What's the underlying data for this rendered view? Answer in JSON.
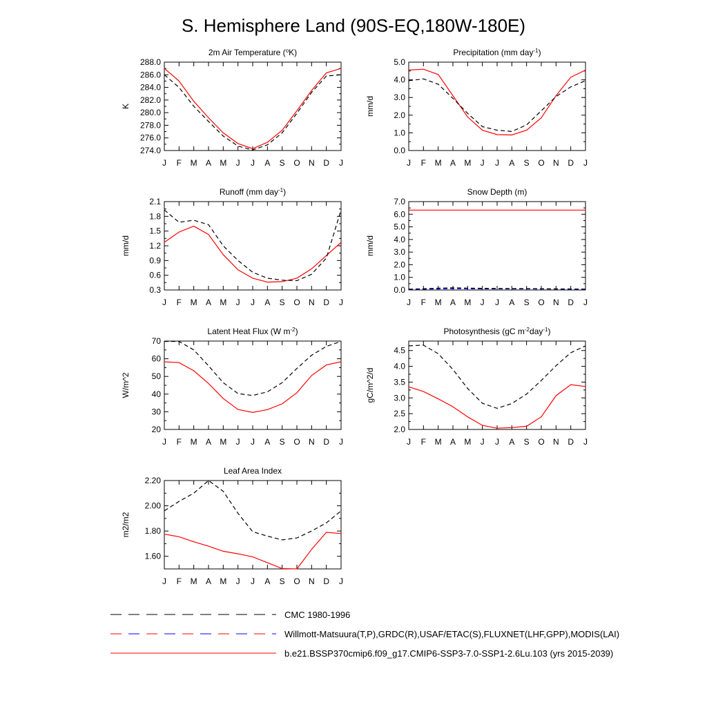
{
  "title": "S. Hemisphere Land (90S-EQ,180W-180E)",
  "months": [
    "J",
    "F",
    "M",
    "A",
    "M",
    "J",
    "J",
    "A",
    "S",
    "O",
    "N",
    "D",
    "J"
  ],
  "colors": {
    "model": "#ff0000",
    "obs": "#000000",
    "obs_alt": "#0000ff",
    "frame": "#000000"
  },
  "legend": [
    {
      "label": "CMC 1980-1996",
      "style": "dashed",
      "colors": [
        "#000000"
      ]
    },
    {
      "label": "Willmott-Matsuura(T,P),GRDC(R),USAF/ETAC(S),FLUXNET(LHF,GPP),MODIS(LAI)",
      "style": "dashed",
      "colors": [
        "#ff0000",
        "#0000ff"
      ]
    },
    {
      "label": "b.e21.BSSP370cmip6.f09_g17.CMIP6-SSP3-7.0-SSP1-2.6Lu.103 (yrs 2015-2039)",
      "style": "solid",
      "colors": [
        "#ff0000"
      ]
    }
  ],
  "chart_data": [
    {
      "type": "line",
      "title": "2m Air Temperature (",
      "title_sup": "o",
      "title_tail": "K)",
      "ylabel": "K",
      "ylim": [
        274,
        288
      ],
      "yticks": [
        274,
        276,
        278,
        280,
        282,
        284,
        286,
        288
      ],
      "ytick_labels": [
        "274.0",
        "276.0",
        "278.0",
        "280.0",
        "282.0",
        "284.0",
        "286.0",
        "288.0"
      ],
      "series": [
        {
          "name": "Model",
          "style": "solid",
          "color": "#ff0000",
          "values": [
            287.0,
            285.0,
            281.8,
            279.2,
            276.8,
            275.1,
            274.3,
            275.3,
            277.2,
            280.3,
            283.5,
            286.3,
            287.0
          ]
        },
        {
          "name": "Observed",
          "style": "dashed",
          "color": "#000000",
          "values": [
            286.0,
            284.0,
            281.0,
            278.6,
            276.3,
            274.7,
            274.1,
            274.9,
            276.8,
            279.9,
            283.2,
            285.8,
            286.0
          ]
        }
      ]
    },
    {
      "type": "line",
      "title": "Precipitation (mm day",
      "title_sup": "-1",
      "title_tail": ")",
      "ylabel": "mm/d",
      "ylim": [
        0,
        5
      ],
      "yticks": [
        0,
        1,
        2,
        3,
        4,
        5
      ],
      "ytick_labels": [
        "0.0",
        "1.0",
        "2.0",
        "3.0",
        "4.0",
        "5.0"
      ],
      "series": [
        {
          "name": "Model",
          "style": "solid",
          "color": "#ff0000",
          "values": [
            4.55,
            4.6,
            4.3,
            3.1,
            1.9,
            1.15,
            0.9,
            0.88,
            1.15,
            1.85,
            3.1,
            4.15,
            4.55
          ]
        },
        {
          "name": "Observed",
          "style": "dashed",
          "color": "#000000",
          "values": [
            3.95,
            4.05,
            3.75,
            2.95,
            2.1,
            1.35,
            1.15,
            1.08,
            1.45,
            2.25,
            3.05,
            3.6,
            3.95
          ]
        }
      ]
    },
    {
      "type": "line",
      "title": "Runoff (mm day",
      "title_sup": "-1",
      "title_tail": ")",
      "ylabel": "mm/d",
      "ylim": [
        0.3,
        2.1
      ],
      "yticks": [
        0.3,
        0.6,
        0.9,
        1.2,
        1.5,
        1.8,
        2.1
      ],
      "ytick_labels": [
        "0.3",
        "0.6",
        "0.9",
        "1.2",
        "1.5",
        "1.8",
        "2.1"
      ],
      "series": [
        {
          "name": "Model",
          "style": "solid",
          "color": "#ff0000",
          "values": [
            1.27,
            1.48,
            1.6,
            1.43,
            1.02,
            0.71,
            0.54,
            0.46,
            0.47,
            0.54,
            0.73,
            1.0,
            1.27
          ]
        },
        {
          "name": "Observed",
          "style": "dashed",
          "color": "#000000",
          "values": [
            1.93,
            1.68,
            1.72,
            1.63,
            1.2,
            0.9,
            0.66,
            0.54,
            0.5,
            0.49,
            0.62,
            0.95,
            1.93
          ]
        }
      ]
    },
    {
      "type": "line",
      "title": "Snow Depth (m)",
      "title_sup": "",
      "title_tail": "",
      "ylabel": "mm/d",
      "ylim": [
        0,
        7
      ],
      "yticks": [
        0,
        1,
        2,
        3,
        4,
        5,
        6,
        7
      ],
      "ytick_labels": [
        "0.0",
        "1.0",
        "2.0",
        "3.0",
        "4.0",
        "5.0",
        "6.0",
        "7.0"
      ],
      "series": [
        {
          "name": "Model",
          "style": "solid",
          "color": "#ff0000",
          "values": [
            6.33,
            6.33,
            6.33,
            6.33,
            6.33,
            6.33,
            6.33,
            6.33,
            6.33,
            6.33,
            6.33,
            6.33,
            6.33
          ]
        },
        {
          "name": "USAF/ETAC",
          "style": "dashed",
          "color": "#0000ff",
          "values": [
            0.04,
            0.06,
            0.09,
            0.11,
            0.1,
            0.09,
            0.09,
            0.09,
            0.09,
            0.08,
            0.07,
            0.05,
            0.04
          ]
        },
        {
          "name": "CMC",
          "style": "dashed",
          "color": "#000000",
          "values": [
            0.07,
            0.1,
            0.15,
            0.17,
            0.15,
            0.13,
            0.12,
            0.11,
            0.11,
            0.1,
            0.09,
            0.08,
            0.07
          ]
        }
      ]
    },
    {
      "type": "line",
      "title": "Latent Heat Flux (W m",
      "title_sup": "-2",
      "title_tail": ")",
      "ylabel": "W/m^2",
      "ylim": [
        20,
        70
      ],
      "yticks": [
        20,
        30,
        40,
        50,
        60,
        70
      ],
      "ytick_labels": [
        "20",
        "30",
        "40",
        "50",
        "60",
        "70"
      ],
      "series": [
        {
          "name": "Model",
          "style": "solid",
          "color": "#ff0000",
          "values": [
            58.3,
            57.8,
            53.2,
            46.0,
            37.5,
            31.3,
            29.6,
            31.2,
            34.5,
            40.8,
            50.5,
            56.5,
            58.3
          ]
        },
        {
          "name": "Observed",
          "style": "dashed",
          "color": "#000000",
          "values": [
            69.8,
            69.8,
            65.0,
            56.0,
            46.5,
            40.3,
            39.2,
            41.3,
            46.5,
            54.5,
            62.0,
            67.0,
            69.8
          ]
        }
      ]
    },
    {
      "type": "line",
      "title": "Photosynthesis (gC m",
      "title_sup": "-2",
      "title_tail": "day",
      "title_sup2": "-1",
      "title_tail2": ")",
      "ylabel": "gC/m^2/d",
      "ylim": [
        2.0,
        4.8
      ],
      "yticks": [
        2.0,
        2.5,
        3.0,
        3.5,
        4.0,
        4.5
      ],
      "ytick_labels": [
        "2.0",
        "2.5",
        "3.0",
        "3.5",
        "4.0",
        "4.5"
      ],
      "series": [
        {
          "name": "Model",
          "style": "solid",
          "color": "#ff0000",
          "values": [
            3.35,
            3.2,
            2.97,
            2.72,
            2.4,
            2.13,
            2.04,
            2.06,
            2.1,
            2.4,
            3.07,
            3.42,
            3.36
          ]
        },
        {
          "name": "Observed",
          "style": "dashed",
          "color": "#000000",
          "values": [
            4.65,
            4.67,
            4.4,
            3.9,
            3.3,
            2.83,
            2.67,
            2.82,
            3.12,
            3.55,
            4.02,
            4.43,
            4.65
          ]
        }
      ]
    },
    {
      "type": "line",
      "title": "Leaf Area Index",
      "title_sup": "",
      "title_tail": "",
      "ylabel": "m2/m2",
      "ylim": [
        1.5,
        2.2
      ],
      "yticks": [
        1.6,
        1.8,
        2.0,
        2.2
      ],
      "ytick_labels": [
        "1.60",
        "1.80",
        "2.00",
        "2.20"
      ],
      "series": [
        {
          "name": "Model",
          "style": "solid",
          "color": "#ff0000",
          "values": [
            1.775,
            1.755,
            1.715,
            1.68,
            1.64,
            1.62,
            1.595,
            1.55,
            1.503,
            1.5,
            1.655,
            1.79,
            1.78
          ]
        },
        {
          "name": "Observed",
          "style": "dashed",
          "color": "#000000",
          "values": [
            1.96,
            2.035,
            2.1,
            2.2,
            2.115,
            1.94,
            1.795,
            1.76,
            1.73,
            1.745,
            1.8,
            1.865,
            1.96
          ]
        }
      ]
    }
  ]
}
